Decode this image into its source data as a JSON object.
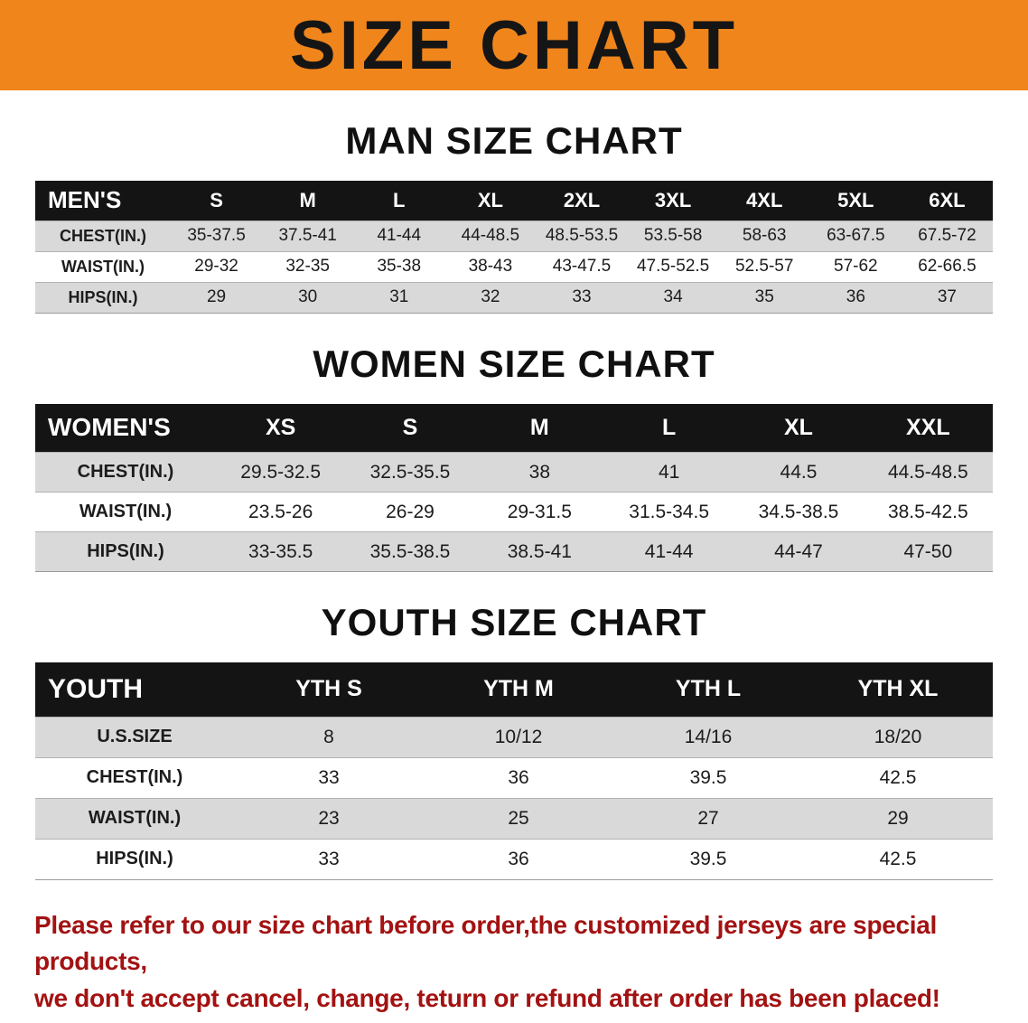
{
  "banner": {
    "title": "SIZE CHART"
  },
  "colors": {
    "banner-bg": "#f0851c",
    "header-bg": "#141414",
    "shade-bg": "#d9d9d9",
    "footer-color": "#a31212"
  },
  "sections": [
    {
      "heading": "MAN SIZE CHART",
      "header_label": "MEN'S",
      "columns": [
        "S",
        "M",
        "L",
        "XL",
        "2XL",
        "3XL",
        "4XL",
        "5XL",
        "6XL"
      ],
      "rows": [
        {
          "label": "CHEST(IN.)",
          "values": [
            "35-37.5",
            "37.5-41",
            "41-44",
            "44-48.5",
            "48.5-53.5",
            "53.5-58",
            "58-63",
            "63-67.5",
            "67.5-72"
          ]
        },
        {
          "label": "WAIST(IN.)",
          "values": [
            "29-32",
            "32-35",
            "35-38",
            "38-43",
            "43-47.5",
            "47.5-52.5",
            "52.5-57",
            "57-62",
            "62-66.5"
          ]
        },
        {
          "label": "HIPS(IN.)",
          "values": [
            "29",
            "30",
            "31",
            "32",
            "33",
            "34",
            "35",
            "36",
            "37"
          ]
        }
      ]
    },
    {
      "heading": "WOMEN SIZE CHART",
      "header_label": "WOMEN'S",
      "columns": [
        "XS",
        "S",
        "M",
        "L",
        "XL",
        "XXL"
      ],
      "rows": [
        {
          "label": "CHEST(IN.)",
          "values": [
            "29.5-32.5",
            "32.5-35.5",
            "38",
            "41",
            "44.5",
            "44.5-48.5"
          ]
        },
        {
          "label": "WAIST(IN.)",
          "values": [
            "23.5-26",
            "26-29",
            "29-31.5",
            "31.5-34.5",
            "34.5-38.5",
            "38.5-42.5"
          ]
        },
        {
          "label": "HIPS(IN.)",
          "values": [
            "33-35.5",
            "35.5-38.5",
            "38.5-41",
            "41-44",
            "44-47",
            "47-50"
          ]
        }
      ]
    },
    {
      "heading": "YOUTH SIZE CHART",
      "header_label": "YOUTH",
      "columns": [
        "YTH S",
        "YTH M",
        "YTH L",
        "YTH XL"
      ],
      "rows": [
        {
          "label": "U.S.SIZE",
          "values": [
            "8",
            "10/12",
            "14/16",
            "18/20"
          ]
        },
        {
          "label": "CHEST(IN.)",
          "values": [
            "33",
            "36",
            "39.5",
            "42.5"
          ]
        },
        {
          "label": "WAIST(IN.)",
          "values": [
            "23",
            "25",
            "27",
            "29"
          ]
        },
        {
          "label": "HIPS(IN.)",
          "values": [
            "33",
            "36",
            "39.5",
            "42.5"
          ]
        }
      ]
    }
  ],
  "footer": {
    "line1": "Please refer to our size chart before order,the customized jerseys are special products,",
    "line2": "we don't accept cancel, change, teturn or refund after order has been placed!"
  }
}
